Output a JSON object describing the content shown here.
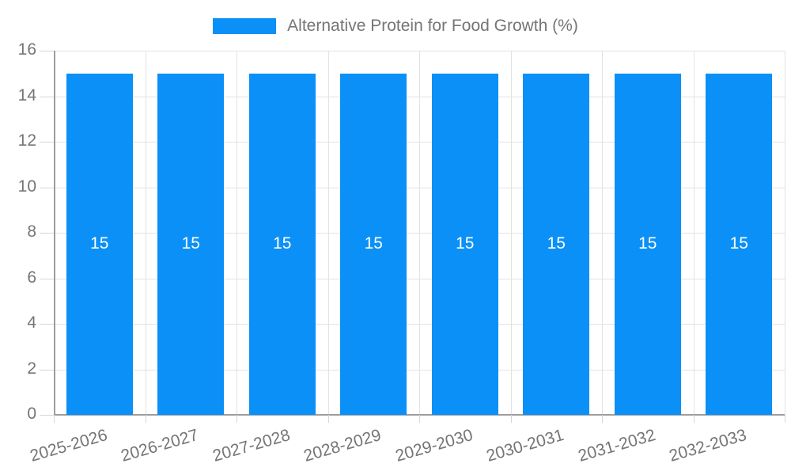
{
  "chart_data": {
    "type": "bar",
    "title": "Alternative Protein for Food Growth (%)",
    "categories": [
      "2025-2026",
      "2026-2027",
      "2027-2028",
      "2028-2029",
      "2029-2030",
      "2030-2031",
      "2031-2032",
      "2032-2033"
    ],
    "series": [
      {
        "name": "Alternative Protein for Food Growth (%)",
        "values": [
          15,
          15,
          15,
          15,
          15,
          15,
          15,
          15
        ]
      }
    ],
    "bar_value_labels": [
      "15",
      "15",
      "15",
      "15",
      "15",
      "15",
      "15",
      "15"
    ],
    "xlabel": "",
    "ylabel": "",
    "ylim": [
      0,
      16
    ],
    "ytick_step": 2,
    "ytick_labels": [
      "0",
      "2",
      "4",
      "6",
      "8",
      "10",
      "12",
      "14",
      "16"
    ],
    "grid": true,
    "legend_position": "top-center"
  },
  "legend": {
    "label": "Alternative Protein for Food Growth (%)"
  },
  "colors": {
    "bar_fill": "#0b90f7",
    "bar_value_text": "#ffffff",
    "gridline": "#e2e2e2",
    "tick": "#d6d6d6",
    "axis_line": "#9e9e9e",
    "tick_label_text": "#757575",
    "legend_text": "#757575",
    "background": "#ffffff"
  }
}
